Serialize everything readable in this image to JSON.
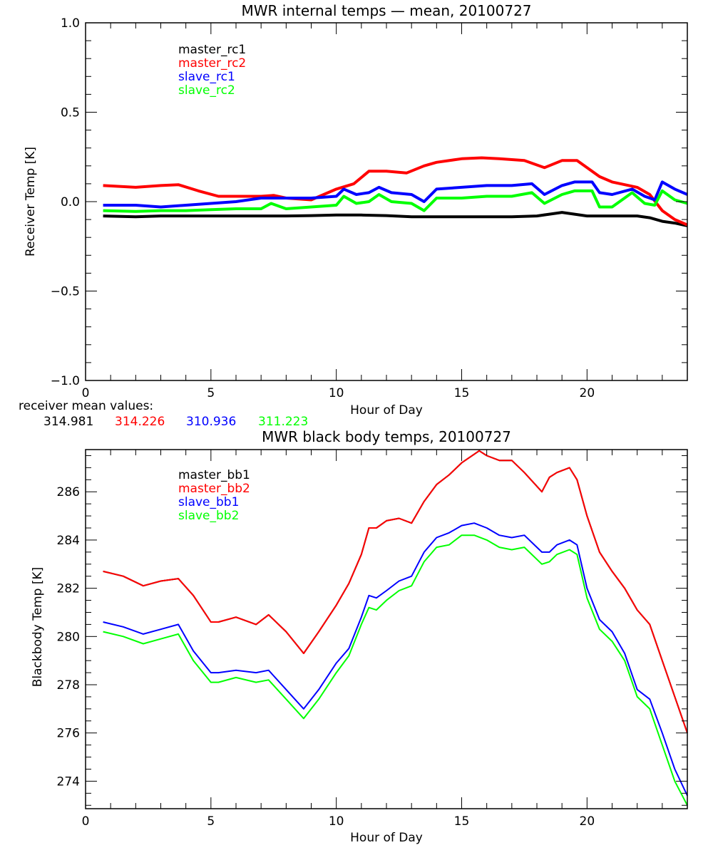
{
  "chart_data": [
    {
      "type": "line",
      "title": "MWR internal temps — mean, 20100727",
      "xlabel": "Hour of Day",
      "ylabel": "Receiver Temp [K]",
      "xlim": [
        0,
        24
      ],
      "ylim": [
        -1.0,
        1.0
      ],
      "x_ticks": [
        0,
        5,
        10,
        15,
        20
      ],
      "x_tick_labels": [
        "0",
        "5",
        "10",
        "15",
        "20"
      ],
      "y_ticks": [
        -1.0,
        -0.5,
        0.0,
        0.5,
        1.0
      ],
      "y_tick_labels": [
        "−1.0",
        "−0.5",
        "0.0",
        "0.5",
        "1.0"
      ],
      "grid": false,
      "legend_position": "top-left-inside",
      "series": [
        {
          "name": "master_rc1",
          "color": "#000000",
          "x": [
            0.7,
            2,
            3,
            4,
            5,
            6,
            7,
            8,
            9,
            10,
            11,
            12,
            13,
            14,
            15,
            16,
            17,
            18,
            18.5,
            19,
            19.5,
            20,
            21,
            22,
            22.5,
            23,
            23.5,
            24
          ],
          "y": [
            -0.08,
            -0.085,
            -0.08,
            -0.08,
            -0.08,
            -0.08,
            -0.08,
            -0.08,
            -0.078,
            -0.075,
            -0.075,
            -0.078,
            -0.085,
            -0.085,
            -0.085,
            -0.085,
            -0.085,
            -0.08,
            -0.07,
            -0.06,
            -0.07,
            -0.08,
            -0.08,
            -0.08,
            -0.09,
            -0.11,
            -0.12,
            -0.135
          ]
        },
        {
          "name": "master_rc2",
          "color": "#ff0000",
          "x": [
            0.7,
            2,
            3,
            3.7,
            4.5,
            5.3,
            6,
            7,
            7.5,
            8,
            9,
            10,
            10.7,
            11.3,
            12,
            12.8,
            13.5,
            14,
            15,
            15.8,
            16.5,
            17.5,
            18.3,
            19,
            19.6,
            20,
            20.5,
            21,
            22,
            22.5,
            23,
            23.5,
            24
          ],
          "y": [
            0.09,
            0.08,
            0.09,
            0.095,
            0.06,
            0.03,
            0.03,
            0.03,
            0.035,
            0.02,
            0.01,
            0.07,
            0.1,
            0.17,
            0.17,
            0.16,
            0.2,
            0.22,
            0.24,
            0.245,
            0.24,
            0.23,
            0.19,
            0.23,
            0.23,
            0.19,
            0.14,
            0.11,
            0.08,
            0.04,
            -0.05,
            -0.1,
            -0.13
          ]
        },
        {
          "name": "slave_rc1",
          "color": "#0000ff",
          "x": [
            0.7,
            2,
            3,
            4,
            5,
            6,
            7,
            8,
            9,
            10,
            10.3,
            10.8,
            11.3,
            11.7,
            12.2,
            13,
            13.5,
            14,
            15,
            16,
            17,
            17.8,
            18.3,
            19,
            19.5,
            20.2,
            20.5,
            21,
            21.8,
            22.3,
            22.7,
            23,
            23.5,
            24
          ],
          "y": [
            -0.02,
            -0.02,
            -0.03,
            -0.02,
            -0.01,
            0.0,
            0.02,
            0.02,
            0.02,
            0.03,
            0.07,
            0.04,
            0.05,
            0.08,
            0.05,
            0.04,
            0.0,
            0.07,
            0.08,
            0.09,
            0.09,
            0.1,
            0.04,
            0.09,
            0.11,
            0.11,
            0.05,
            0.04,
            0.07,
            0.03,
            0.01,
            0.11,
            0.07,
            0.04
          ]
        },
        {
          "name": "slave_rc2",
          "color": "#00ff00",
          "x": [
            0.7,
            2,
            3,
            4,
            5,
            6,
            7,
            7.4,
            8,
            9,
            10,
            10.3,
            10.8,
            11.3,
            11.7,
            12.2,
            13,
            13.5,
            14,
            15,
            16,
            17,
            17.8,
            18.3,
            19,
            19.5,
            20.2,
            20.5,
            21,
            21.8,
            22.3,
            22.7,
            23,
            23.5,
            24
          ],
          "y": [
            -0.05,
            -0.055,
            -0.05,
            -0.05,
            -0.045,
            -0.04,
            -0.04,
            -0.01,
            -0.04,
            -0.03,
            -0.02,
            0.03,
            -0.01,
            0.0,
            0.04,
            0.0,
            -0.01,
            -0.05,
            0.02,
            0.02,
            0.03,
            0.03,
            0.05,
            -0.01,
            0.04,
            0.06,
            0.06,
            -0.03,
            -0.03,
            0.05,
            -0.01,
            -0.02,
            0.06,
            0.01,
            -0.01
          ]
        }
      ]
    },
    {
      "type": "line",
      "title": "MWR black body temps, 20100727",
      "xlabel": "Hour of Day",
      "ylabel": "Blackbody Temp [K]",
      "xlim": [
        0,
        24
      ],
      "ylim": [
        272.86,
        287.75
      ],
      "x_ticks": [
        0,
        5,
        10,
        15,
        20
      ],
      "x_tick_labels": [
        "0",
        "5",
        "10",
        "15",
        "20"
      ],
      "y_ticks": [
        274,
        276,
        278,
        280,
        282,
        284,
        286
      ],
      "y_tick_labels": [
        "274",
        "276",
        "278",
        "280",
        "282",
        "284",
        "286"
      ],
      "grid": false,
      "legend_position": "top-left-inside",
      "series": [
        {
          "name": "master_bb1",
          "color": "#000000",
          "x": [
            0.7,
            1.5,
            2.3,
            3,
            3.7,
            4.3,
            5,
            5.3,
            6,
            6.8,
            7.3,
            8,
            8.7,
            9.3,
            10,
            10.5,
            11,
            11.3,
            11.6,
            12,
            12.5,
            13,
            13.5,
            14,
            14.5,
            15,
            15.7,
            16,
            16.5,
            17,
            17.5,
            18.2,
            18.5,
            18.8,
            19.3,
            19.6,
            20,
            20.5,
            21,
            21.5,
            22,
            22.5,
            23,
            23.5,
            24
          ],
          "y": [
            282.7,
            282.5,
            282.1,
            282.3,
            282.4,
            281.7,
            280.6,
            280.6,
            280.8,
            280.5,
            280.9,
            280.2,
            279.3,
            280.2,
            281.3,
            282.2,
            283.4,
            284.5,
            284.5,
            284.8,
            284.9,
            284.7,
            285.6,
            286.3,
            286.7,
            287.2,
            287.7,
            287.5,
            287.3,
            287.3,
            286.8,
            286.0,
            286.6,
            286.8,
            287.0,
            286.5,
            285.0,
            283.5,
            282.7,
            282.0,
            281.1,
            280.5,
            279.0,
            277.5,
            276.0
          ]
        },
        {
          "name": "master_bb2",
          "color": "#ff0000",
          "x": [
            0.7,
            1.5,
            2.3,
            3,
            3.7,
            4.3,
            5,
            5.3,
            6,
            6.8,
            7.3,
            8,
            8.7,
            9.3,
            10,
            10.5,
            11,
            11.3,
            11.6,
            12,
            12.5,
            13,
            13.5,
            14,
            14.5,
            15,
            15.7,
            16,
            16.5,
            17,
            17.5,
            18.2,
            18.5,
            18.8,
            19.3,
            19.6,
            20,
            20.5,
            21,
            21.5,
            22,
            22.5,
            23,
            23.5,
            24
          ],
          "y": [
            282.7,
            282.5,
            282.1,
            282.3,
            282.4,
            281.7,
            280.6,
            280.6,
            280.8,
            280.5,
            280.9,
            280.2,
            279.3,
            280.2,
            281.3,
            282.2,
            283.4,
            284.5,
            284.5,
            284.8,
            284.9,
            284.7,
            285.6,
            286.3,
            286.7,
            287.2,
            287.7,
            287.5,
            287.3,
            287.3,
            286.8,
            286.0,
            286.6,
            286.8,
            287.0,
            286.5,
            285.0,
            283.5,
            282.7,
            282.0,
            281.1,
            280.5,
            279.0,
            277.5,
            276.0
          ]
        },
        {
          "name": "slave_bb1",
          "color": "#0000ff",
          "x": [
            0.7,
            1.5,
            2.3,
            3,
            3.7,
            4.3,
            5,
            5.3,
            6,
            6.8,
            7.3,
            8,
            8.7,
            9.3,
            10,
            10.5,
            11,
            11.3,
            11.6,
            12,
            12.5,
            13,
            13.5,
            14,
            14.5,
            15,
            15.5,
            16,
            16.5,
            17,
            17.5,
            18.2,
            18.5,
            18.8,
            19.3,
            19.6,
            20,
            20.5,
            21,
            21.5,
            22,
            22.5,
            23,
            23.5,
            24
          ],
          "y": [
            280.6,
            280.4,
            280.1,
            280.3,
            280.5,
            279.4,
            278.5,
            278.5,
            278.6,
            278.5,
            278.6,
            277.8,
            277.0,
            277.8,
            278.9,
            279.5,
            280.8,
            281.7,
            281.6,
            281.9,
            282.3,
            282.5,
            283.5,
            284.1,
            284.3,
            284.6,
            284.7,
            284.5,
            284.2,
            284.1,
            284.2,
            283.5,
            283.5,
            283.8,
            284.0,
            283.8,
            282.0,
            280.7,
            280.2,
            279.3,
            277.8,
            277.4,
            276.0,
            274.5,
            273.4
          ]
        },
        {
          "name": "slave_bb2",
          "color": "#00ff00",
          "x": [
            0.7,
            1.5,
            2.3,
            3,
            3.7,
            4.3,
            5,
            5.3,
            6,
            6.8,
            7.3,
            8,
            8.7,
            9.3,
            10,
            10.5,
            11,
            11.3,
            11.6,
            12,
            12.5,
            13,
            13.5,
            14,
            14.5,
            15,
            15.5,
            16,
            16.5,
            17,
            17.5,
            18.2,
            18.5,
            18.8,
            19.3,
            19.6,
            20,
            20.5,
            21,
            21.5,
            22,
            22.5,
            23,
            23.5,
            24
          ],
          "y": [
            280.2,
            280.0,
            279.7,
            279.9,
            280.1,
            279.0,
            278.1,
            278.1,
            278.3,
            278.1,
            278.2,
            277.4,
            276.6,
            277.4,
            278.5,
            279.2,
            280.5,
            281.2,
            281.1,
            281.5,
            281.9,
            282.1,
            283.1,
            283.7,
            283.8,
            284.2,
            284.2,
            284.0,
            283.7,
            283.6,
            283.7,
            283.0,
            283.1,
            283.4,
            283.6,
            283.4,
            281.6,
            280.3,
            279.8,
            279.0,
            277.5,
            277.0,
            275.5,
            274.0,
            273.0
          ]
        }
      ]
    }
  ],
  "receiver_means": {
    "label": "receiver mean values:",
    "values": [
      {
        "text": "314.981",
        "color": "#000000"
      },
      {
        "text": "314.226",
        "color": "#ff0000"
      },
      {
        "text": "310.936",
        "color": "#0000ff"
      },
      {
        "text": "311.223",
        "color": "#00ff00"
      }
    ]
  }
}
